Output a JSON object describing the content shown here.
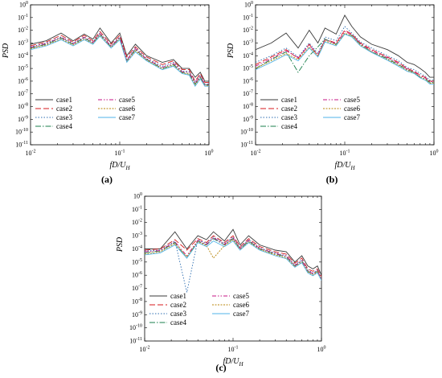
{
  "chart_data": [
    {
      "type": "line",
      "panel_label": "(a)",
      "xlabel": "fD/U_H",
      "ylabel": "PSD",
      "xscale": "log",
      "yscale": "log",
      "xlim": [
        0.01,
        1
      ],
      "ylim": [
        1e-11,
        1
      ],
      "x_tick_labels": [
        "10^-2",
        "10^-1",
        "10^0"
      ],
      "y_tick_labels": [
        "10^-11",
        "10^-10",
        "10^-9",
        "10^-8",
        "10^-7",
        "10^-6",
        "10^-5",
        "10^-4",
        "10^-3",
        "10^-2",
        "10^-1",
        "10^0"
      ],
      "legend": "lower-left",
      "x": [
        0.01,
        0.015,
        0.022,
        0.03,
        0.04,
        0.05,
        0.06,
        0.08,
        0.1,
        0.12,
        0.15,
        0.2,
        0.3,
        0.4,
        0.5,
        0.6,
        0.7,
        0.8,
        0.9,
        1.0
      ],
      "series": [
        {
          "name": "case1",
          "color": "#3a3a3a",
          "dash": "solid",
          "values": [
            0.0008,
            0.0015,
            0.006,
            0.0015,
            0.005,
            0.002,
            0.015,
            0.001,
            0.006,
            0.0001,
            0.0008,
            0.0001,
            3e-05,
            5e-05,
            1e-05,
            1e-05,
            2e-06,
            5e-06,
            1e-06,
            1e-06
          ]
        },
        {
          "name": "case2",
          "color": "#d7191c",
          "dash": "7,3",
          "values": [
            0.0006,
            0.0012,
            0.004,
            0.0012,
            0.004,
            0.0015,
            0.008,
            0.0008,
            0.004,
            8e-05,
            0.0005,
            8e-05,
            2e-05,
            4e-05,
            8e-06,
            8e-06,
            1e-06,
            4e-06,
            8e-07,
            8e-07
          ]
        },
        {
          "name": "case3",
          "color": "#2b6cb0",
          "dash": "1.5,2",
          "values": [
            0.0005,
            0.001,
            0.003,
            0.001,
            0.003,
            0.0012,
            0.006,
            0.0006,
            0.003,
            5e-05,
            0.0004,
            6e-05,
            1.5e-05,
            3e-05,
            6e-06,
            6e-06,
            8e-07,
            3e-06,
            6e-07,
            6e-07
          ]
        },
        {
          "name": "case4",
          "color": "#1a7f4b",
          "dash": "7,2,1.5,2",
          "values": [
            0.0004,
            0.0008,
            0.0025,
            0.0008,
            0.0025,
            0.001,
            0.005,
            0.0005,
            0.0025,
            4e-05,
            0.0003,
            5e-05,
            1e-05,
            2e-05,
            5e-06,
            4e-06,
            6e-07,
            2e-06,
            5e-07,
            5e-07
          ]
        },
        {
          "name": "case5",
          "color": "#c71585",
          "dash": "5,2,1.5,2,1.5,2",
          "values": [
            0.00045,
            0.0009,
            0.0028,
            0.0009,
            0.0028,
            0.0011,
            0.0055,
            0.00055,
            0.0028,
            4.5e-05,
            0.00035,
            5.5e-05,
            1.2e-05,
            2.5e-05,
            5.5e-06,
            5e-06,
            7e-07,
            2.5e-06,
            5.5e-07,
            5.5e-07
          ]
        },
        {
          "name": "case6",
          "color": "#b8860b",
          "dash": "2,1.5",
          "values": [
            0.00035,
            0.0007,
            0.002,
            0.0007,
            0.002,
            0.0009,
            0.004,
            0.00045,
            0.002,
            3.5e-05,
            0.00025,
            4.5e-05,
            9e-06,
            1.8e-05,
            4.5e-06,
            3.5e-06,
            5e-07,
            1.8e-06,
            4.5e-07,
            4.5e-07
          ]
        },
        {
          "name": "case7",
          "color": "#4fb3e8",
          "dash": "solid",
          "values": [
            0.0003,
            0.0006,
            0.0018,
            0.0006,
            0.0018,
            0.0008,
            0.0035,
            0.0004,
            0.0018,
            3e-05,
            0.0002,
            4e-05,
            8e-06,
            1.5e-05,
            4e-06,
            3e-06,
            4e-07,
            1.5e-06,
            4e-07,
            4e-07
          ]
        }
      ]
    },
    {
      "type": "line",
      "panel_label": "(b)",
      "xlabel": "fD/U_H",
      "ylabel": "PSD",
      "xscale": "log",
      "yscale": "log",
      "xlim": [
        0.01,
        1
      ],
      "ylim": [
        1e-11,
        1
      ],
      "x_tick_labels": [
        "10^-2",
        "10^-1",
        "10^0"
      ],
      "y_tick_labels": [
        "10^-11",
        "10^-10",
        "10^-9",
        "10^-8",
        "10^-7",
        "10^-6",
        "10^-5",
        "10^-4",
        "10^-3",
        "10^-2",
        "10^-1",
        "10^0"
      ],
      "legend": "lower-left",
      "x": [
        0.01,
        0.015,
        0.022,
        0.03,
        0.04,
        0.05,
        0.06,
        0.08,
        0.1,
        0.12,
        0.15,
        0.2,
        0.3,
        0.4,
        0.5,
        0.6,
        0.7,
        0.8,
        0.9,
        1.0
      ],
      "series": [
        {
          "name": "case1",
          "color": "#3a3a3a",
          "dash": "solid",
          "values": [
            0.0003,
            0.001,
            0.006,
            0.0004,
            0.01,
            0.001,
            0.015,
            0.005,
            0.15,
            0.02,
            0.003,
            0.0008,
            0.0003,
            0.0001,
            3e-05,
            2e-05,
            1e-05,
            5e-06,
            2e-06,
            2e-06
          ]
        },
        {
          "name": "case2",
          "color": "#d7191c",
          "dash": "7,3",
          "values": [
            2e-05,
            8e-05,
            0.0003,
            6e-05,
            0.0008,
            0.0001,
            0.002,
            0.001,
            0.01,
            0.005,
            0.001,
            0.0003,
            8e-05,
            3e-05,
            1e-05,
            6e-06,
            3e-06,
            2e-06,
            1e-06,
            1e-06
          ]
        },
        {
          "name": "case3",
          "color": "#2b6cb0",
          "dash": "1.5,2",
          "values": [
            3e-05,
            0.0001,
            0.0004,
            8e-05,
            0.001,
            0.00015,
            0.003,
            0.0015,
            0.02,
            0.006,
            0.0012,
            0.0004,
            0.0001,
            4e-05,
            1.2e-05,
            8e-06,
            4e-06,
            2.5e-06,
            1.2e-06,
            1.2e-06
          ]
        },
        {
          "name": "case4",
          "color": "#1a7f4b",
          "dash": "7,2,1.5,2",
          "values": [
            1e-05,
            5e-05,
            0.0002,
            5e-06,
            0.0001,
            0.0005,
            0.002,
            0.0008,
            0.005,
            0.004,
            0.0008,
            0.0002,
            6e-05,
            2e-05,
            8e-06,
            5e-06,
            2e-06,
            1.5e-06,
            8e-07,
            8e-07
          ]
        },
        {
          "name": "case5",
          "color": "#c71585",
          "dash": "5,2,1.5,2,1.5,2",
          "values": [
            1.5e-05,
            6e-05,
            0.00025,
            7e-05,
            0.0007,
            0.00012,
            0.0018,
            0.0009,
            0.008,
            0.0045,
            0.0009,
            0.00025,
            7e-05,
            2.5e-05,
            9e-06,
            5.5e-06,
            2.5e-06,
            1.8e-06,
            9e-07,
            9e-07
          ]
        },
        {
          "name": "case6",
          "color": "#b8860b",
          "dash": "2,1.5",
          "values": [
            1e-05,
            4e-05,
            0.00015,
            5e-05,
            0.0005,
            0.0001,
            0.0015,
            0.0007,
            0.006,
            0.0035,
            0.0007,
            0.0002,
            5e-05,
            1.8e-05,
            7e-06,
            4.5e-06,
            2e-06,
            1.4e-06,
            7e-07,
            7e-07
          ]
        },
        {
          "name": "case7",
          "color": "#4fb3e8",
          "dash": "solid",
          "values": [
            8e-06,
            3e-05,
            0.00012,
            4e-05,
            0.0004,
            8e-05,
            0.0012,
            0.0006,
            0.005,
            0.003,
            0.0006,
            0.00018,
            4.5e-05,
            1.5e-05,
            6e-06,
            4e-06,
            1.8e-06,
            1.2e-06,
            6e-07,
            6e-07
          ]
        }
      ]
    },
    {
      "type": "line",
      "panel_label": "(c)",
      "xlabel": "fD/U_H",
      "ylabel": "PSD",
      "xscale": "log",
      "yscale": "log",
      "xlim": [
        0.01,
        1
      ],
      "ylim": [
        1e-11,
        1
      ],
      "x_tick_labels": [
        "10^-2",
        "10^-1",
        "10^0"
      ],
      "y_tick_labels": [
        "10^-11",
        "10^-10",
        "10^-9",
        "10^-8",
        "10^-7",
        "10^-6",
        "10^-5",
        "10^-4",
        "10^-3",
        "10^-2",
        "10^-1",
        "10^0"
      ],
      "legend": "lower-left",
      "x": [
        0.01,
        0.015,
        0.022,
        0.03,
        0.04,
        0.05,
        0.06,
        0.08,
        0.1,
        0.12,
        0.15,
        0.2,
        0.3,
        0.4,
        0.5,
        0.6,
        0.7,
        0.8,
        0.9,
        1.0
      ],
      "series": [
        {
          "name": "case1",
          "color": "#3a3a3a",
          "dash": "solid",
          "values": [
            0.0001,
            0.0001,
            0.002,
            0.0001,
            0.001,
            0.0005,
            0.002,
            0.0004,
            0.003,
            0.0002,
            0.001,
            0.0002,
            8e-05,
            6e-05,
            1e-05,
            3e-05,
            5e-06,
            3e-06,
            5e-06,
            1e-06
          ]
        },
        {
          "name": "case2",
          "color": "#d7191c",
          "dash": "7,3",
          "values": [
            8e-05,
            0.0001,
            0.0005,
            8e-05,
            0.0006,
            0.0003,
            0.001,
            0.0003,
            0.001,
            0.00015,
            0.0006,
            0.00015,
            6e-05,
            4e-05,
            8e-06,
            2e-05,
            3e-06,
            2e-06,
            3e-06,
            8e-07
          ]
        },
        {
          "name": "case3",
          "color": "#2b6cb0",
          "dash": "1.5,2",
          "values": [
            7e-05,
            8e-05,
            0.0004,
            5e-08,
            0.0005,
            0.00025,
            0.0008,
            0.00025,
            0.0008,
            0.00012,
            0.0005,
            0.00012,
            5e-05,
            3e-05,
            6e-06,
            1.5e-05,
            2.5e-06,
            1.5e-06,
            2.5e-06,
            6e-07
          ]
        },
        {
          "name": "case4",
          "color": "#1a7f4b",
          "dash": "7,2,1.5,2",
          "values": [
            5e-05,
            7e-05,
            0.0003,
            2e-05,
            0.0004,
            0.0002,
            0.0006,
            0.0002,
            0.0006,
            0.0001,
            0.0004,
            0.0001,
            4e-05,
            2.5e-05,
            5e-06,
            1.2e-05,
            2e-06,
            1.2e-06,
            2e-06,
            5e-07
          ]
        },
        {
          "name": "case5",
          "color": "#c71585",
          "dash": "5,2,1.5,2,1.5,2",
          "values": [
            6e-05,
            7.5e-05,
            0.00035,
            3e-05,
            0.00045,
            0.00022,
            0.0007,
            0.00022,
            0.0007,
            0.00011,
            0.00045,
            0.00011,
            4.5e-05,
            2.8e-05,
            5.5e-06,
            1.3e-05,
            2.2e-06,
            1.3e-06,
            2.2e-06,
            5.5e-07
          ]
        },
        {
          "name": "case6",
          "color": "#b8860b",
          "dash": "2,1.5",
          "values": [
            4e-05,
            6e-05,
            0.00025,
            2.5e-05,
            0.00035,
            0.00018,
            2e-05,
            0.00018,
            0.0005,
            9e-05,
            0.00035,
            9e-05,
            3.5e-05,
            2e-05,
            4.5e-06,
            1e-05,
            1.8e-06,
            1e-06,
            1.8e-06,
            4.5e-07
          ]
        },
        {
          "name": "case7",
          "color": "#4fb3e8",
          "dash": "solid",
          "values": [
            3.5e-05,
            5e-05,
            0.0002,
            2e-05,
            0.0003,
            0.00015,
            0.0004,
            0.00015,
            0.0004,
            8e-05,
            0.0003,
            8e-05,
            3e-05,
            1.8e-05,
            4e-06,
            9e-06,
            1.5e-06,
            9e-07,
            1.5e-06,
            4e-07
          ]
        }
      ]
    }
  ]
}
